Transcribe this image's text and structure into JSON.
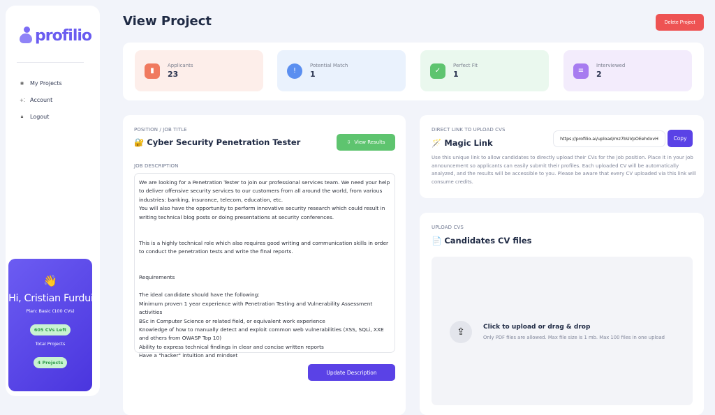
{
  "brand": {
    "name": "profilio",
    "accent": "#6a5cf0"
  },
  "sidebar": {
    "items": [
      {
        "label": "My Projects",
        "icon": "projects-icon"
      },
      {
        "label": "Account",
        "icon": "sparkle-icon"
      },
      {
        "label": "Logout",
        "icon": "lock-icon"
      }
    ]
  },
  "user_card": {
    "emoji": "👋",
    "greeting": "Hi, Cristian Furdui",
    "plan": "Plan: Basic (100 CVs)",
    "cvs_left": "605 CVs Left",
    "total_label": "Total Projects",
    "projects": "4 Projects"
  },
  "header": {
    "title": "View Project",
    "delete_label": "Delete Project"
  },
  "stats": [
    {
      "label": "Applicants",
      "value": "23",
      "color": "#f07a5f",
      "bg": "#fdeeea",
      "icon": "chart-icon"
    },
    {
      "label": "Potential Match",
      "value": "1",
      "color": "#5b8ff0",
      "bg": "#eaf2fd",
      "icon": "info-icon"
    },
    {
      "label": "Perfect Fit",
      "value": "1",
      "color": "#5ec46f",
      "bg": "#eaf8ee",
      "icon": "check-icon"
    },
    {
      "label": "Interviewed",
      "value": "2",
      "color": "#a77cf0",
      "bg": "#f3ecfc",
      "icon": "document-icon"
    }
  ],
  "position": {
    "label": "POSITION / JOB TITLE",
    "emoji": "🔐",
    "title": "Cyber Security Penetration Tester",
    "view_results": "View Results"
  },
  "job": {
    "label": "JOB DESCRIPTION",
    "text": "We are looking for a Penetration Tester to join our professional services team. We need your help to deliver offensive security services to our customers from all around the world, from various industries: banking, insurance, telecom, education, etc.\nYou will also have the opportunity to perform innovative security research which could result in writing technical blog posts or doing presentations at security conferences.\n\n\nThis is a highly technical role which also requires good writing and communication skills in order to conduct the penetration tests and write the final reports.\n\n\nRequirements\n\nThe ideal candidate should have the following:\nMinimum proven 1 year experience with Penetration Testing and Vulnerability Assessment activities\nBSc in Computer Science or related field, or equivalent work experience\nKnowledge of how to manually detect and exploit common web vulnerabilities (XSS, SQLi, XXE and others from OWASP Top 10)\nAbility to express technical findings in clear and concise written reports\nHave a \"hacker\" intuition and mindset",
    "update_label": "Update Description"
  },
  "magic": {
    "label": "DIRECT LINK TO UPLOAD CVS",
    "emoji": "🪄",
    "title": "Magic Link",
    "url": "https://profilio.ai/upload/mz7bUVpOEehdxvH",
    "copy_label": "Copy",
    "description": "Use this unique link to allow candidates to directly upload their CVs for the job position. Place it in your job announcement so applicants can easily submit their profiles. Each uploaded CV will be automatically analyzed, and the results will be accessible to you. Please be aware that every CV uploaded via this link will consume credits."
  },
  "upload": {
    "label": "UPLOAD CVS",
    "emoji": "📄",
    "title": "Candidates CV files",
    "cta": "Click to upload or drag & drop",
    "hint": "Only PDF files are allowed. Max file size is 1 mb. Max 100 files in one upload"
  }
}
